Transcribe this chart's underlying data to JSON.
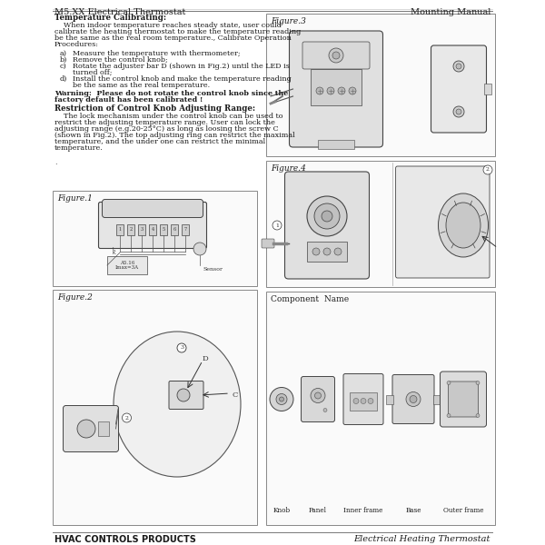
{
  "header_left": "M5.XX Electrical Thermostat",
  "header_right": "Mounting Manual",
  "footer_left": "HVAC CONTROLS PRODUCTS",
  "footer_right": "Electrical Heating Thermostat",
  "title_temp_cal": "Temperature Calibrating:",
  "para_temp_cal_lines": [
    "    When indoor temperature reaches steady state, user could",
    "calibrate the heating thermostat to make the temperature reading",
    "be the same as the real room temperature., Calibrate Operation",
    "Procedures:"
  ],
  "items_temp_cal": [
    [
      "a)",
      "Measure the temperature with thermometer;"
    ],
    [
      "b)",
      "Remove the control knob;"
    ],
    [
      "c)",
      "Rotate the adjuster bar D (shown in Fig.2) until the LED is"
    ],
    [
      "",
      "turned off;"
    ],
    [
      "d)",
      "Install the control knob and make the temperature reading"
    ],
    [
      "",
      "be the same as the real temperature."
    ]
  ],
  "warning_line1": "Warning:  Please do not rotate the control knob since the",
  "warning_line2": "factory default has been calibrated !",
  "title_restriction": "Restriction of Control Knob Adjusting Range:",
  "para_restriction_lines": [
    "    The lock mechanism under the control knob can be used to",
    "restrict the adjusting temperature range. User can lock the",
    "adjusting range (e.g.20-25°C) as long as loosing the screw C",
    "(shown in Fig.2). The top adjusting ring can restrict the maximal",
    "temperature, and the under one can restrict the minimal",
    "temperature."
  ],
  "fig1_label": "Figure.1",
  "fig2_label": "Figure.2",
  "fig3_label": "Figure.3",
  "fig4_label": "Figure.4",
  "component_label": "Component  Name",
  "component_names": [
    "Knob",
    "Panel",
    "Inner frame",
    "Base",
    "Outer frame"
  ],
  "bg_color": "#ffffff",
  "text_color": "#1a1a1a",
  "line_color": "#999999",
  "draw_color": "#444444",
  "draw_light": "#cccccc",
  "draw_mid": "#aaaaaa"
}
